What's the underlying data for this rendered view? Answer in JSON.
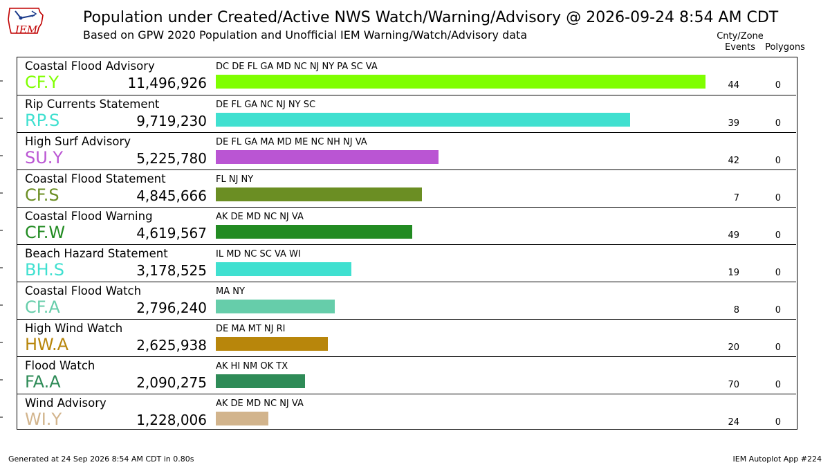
{
  "header": {
    "title": "Population under Created/Active NWS Watch/Warning/Advisory @ 2026-09-24 8:54 AM CDT",
    "subtitle": "Based on GPW 2020 Population and Unofficial IEM Warning/Watch/Advisory data",
    "col_events": "Cnty/Zone\nEvents",
    "col_polygons": "Polygons"
  },
  "logo": {
    "text": "IEM",
    "icon": "iowa-state-outline-icon"
  },
  "footer": {
    "left": "Generated at 24 Sep 2026 8:54 AM CDT in 0.80s",
    "right": "IEM Autoplot App #224"
  },
  "chart_data": {
    "type": "bar",
    "orientation": "horizontal",
    "xlim": [
      0,
      11496926
    ],
    "rows": [
      {
        "name": "Coastal Flood Advisory",
        "code": "CF.Y",
        "population": 11496926,
        "population_label": "11,496,926",
        "states": "DC DE FL GA MD NC NJ NY PA SC VA",
        "events": 44,
        "polygons": 0,
        "color": "#7fff00"
      },
      {
        "name": "Rip Currents Statement",
        "code": "RP.S",
        "population": 9719230,
        "population_label": "9,719,230",
        "states": "DE FL GA NC NJ NY SC",
        "events": 39,
        "polygons": 0,
        "color": "#40e0d0"
      },
      {
        "name": "High Surf Advisory",
        "code": "SU.Y",
        "population": 5225780,
        "population_label": "5,225,780",
        "states": "DE FL GA MA MD ME NC NH NJ VA",
        "events": 42,
        "polygons": 0,
        "color": "#ba55d3"
      },
      {
        "name": "Coastal Flood Statement",
        "code": "CF.S",
        "population": 4845666,
        "population_label": "4,845,666",
        "states": "FL NJ NY",
        "events": 7,
        "polygons": 0,
        "color": "#6b8e23"
      },
      {
        "name": "Coastal Flood Warning",
        "code": "CF.W",
        "population": 4619567,
        "population_label": "4,619,567",
        "states": "AK DE MD NC NJ VA",
        "events": 49,
        "polygons": 0,
        "color": "#228b22"
      },
      {
        "name": "Beach Hazard Statement",
        "code": "BH.S",
        "population": 3178525,
        "population_label": "3,178,525",
        "states": "IL MD NC SC VA WI",
        "events": 19,
        "polygons": 0,
        "color": "#40e0d0"
      },
      {
        "name": "Coastal Flood Watch",
        "code": "CF.A",
        "population": 2796240,
        "population_label": "2,796,240",
        "states": "MA NY",
        "events": 8,
        "polygons": 0,
        "color": "#66cdaa"
      },
      {
        "name": "High Wind Watch",
        "code": "HW.A",
        "population": 2625938,
        "population_label": "2,625,938",
        "states": "DE MA MT NJ RI",
        "events": 20,
        "polygons": 0,
        "color": "#b8860b"
      },
      {
        "name": "Flood Watch",
        "code": "FA.A",
        "population": 2090275,
        "population_label": "2,090,275",
        "states": "AK HI NM OK TX",
        "events": 70,
        "polygons": 0,
        "color": "#2e8b57"
      },
      {
        "name": "Wind Advisory",
        "code": "WI.Y",
        "population": 1228006,
        "population_label": "1,228,006",
        "states": "AK DE MD NC NJ VA",
        "events": 24,
        "polygons": 0,
        "color": "#d2b48c"
      }
    ]
  }
}
